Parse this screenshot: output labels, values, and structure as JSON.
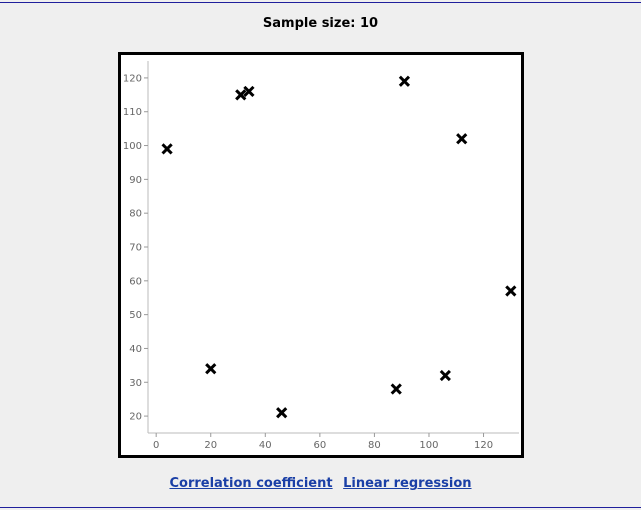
{
  "header": {
    "title": "Sample size: 10"
  },
  "links": {
    "correlation": "Correlation coefficient",
    "regression": "Linear regression"
  },
  "chart_data": {
    "type": "scatter",
    "marker": "x",
    "title": "",
    "xlabel": "",
    "ylabel": "",
    "xlim": [
      -3,
      133
    ],
    "ylim": [
      15,
      125
    ],
    "xticks": [
      0,
      20,
      40,
      60,
      80,
      100,
      120
    ],
    "yticks": [
      20,
      30,
      40,
      50,
      60,
      70,
      80,
      90,
      100,
      110,
      120
    ],
    "grid": false,
    "points": [
      {
        "x": 4,
        "y": 99
      },
      {
        "x": 20,
        "y": 34
      },
      {
        "x": 31,
        "y": 115
      },
      {
        "x": 34,
        "y": 116
      },
      {
        "x": 46,
        "y": 21
      },
      {
        "x": 88,
        "y": 28
      },
      {
        "x": 91,
        "y": 119
      },
      {
        "x": 106,
        "y": 32
      },
      {
        "x": 112,
        "y": 102
      },
      {
        "x": 130,
        "y": 57
      }
    ]
  }
}
